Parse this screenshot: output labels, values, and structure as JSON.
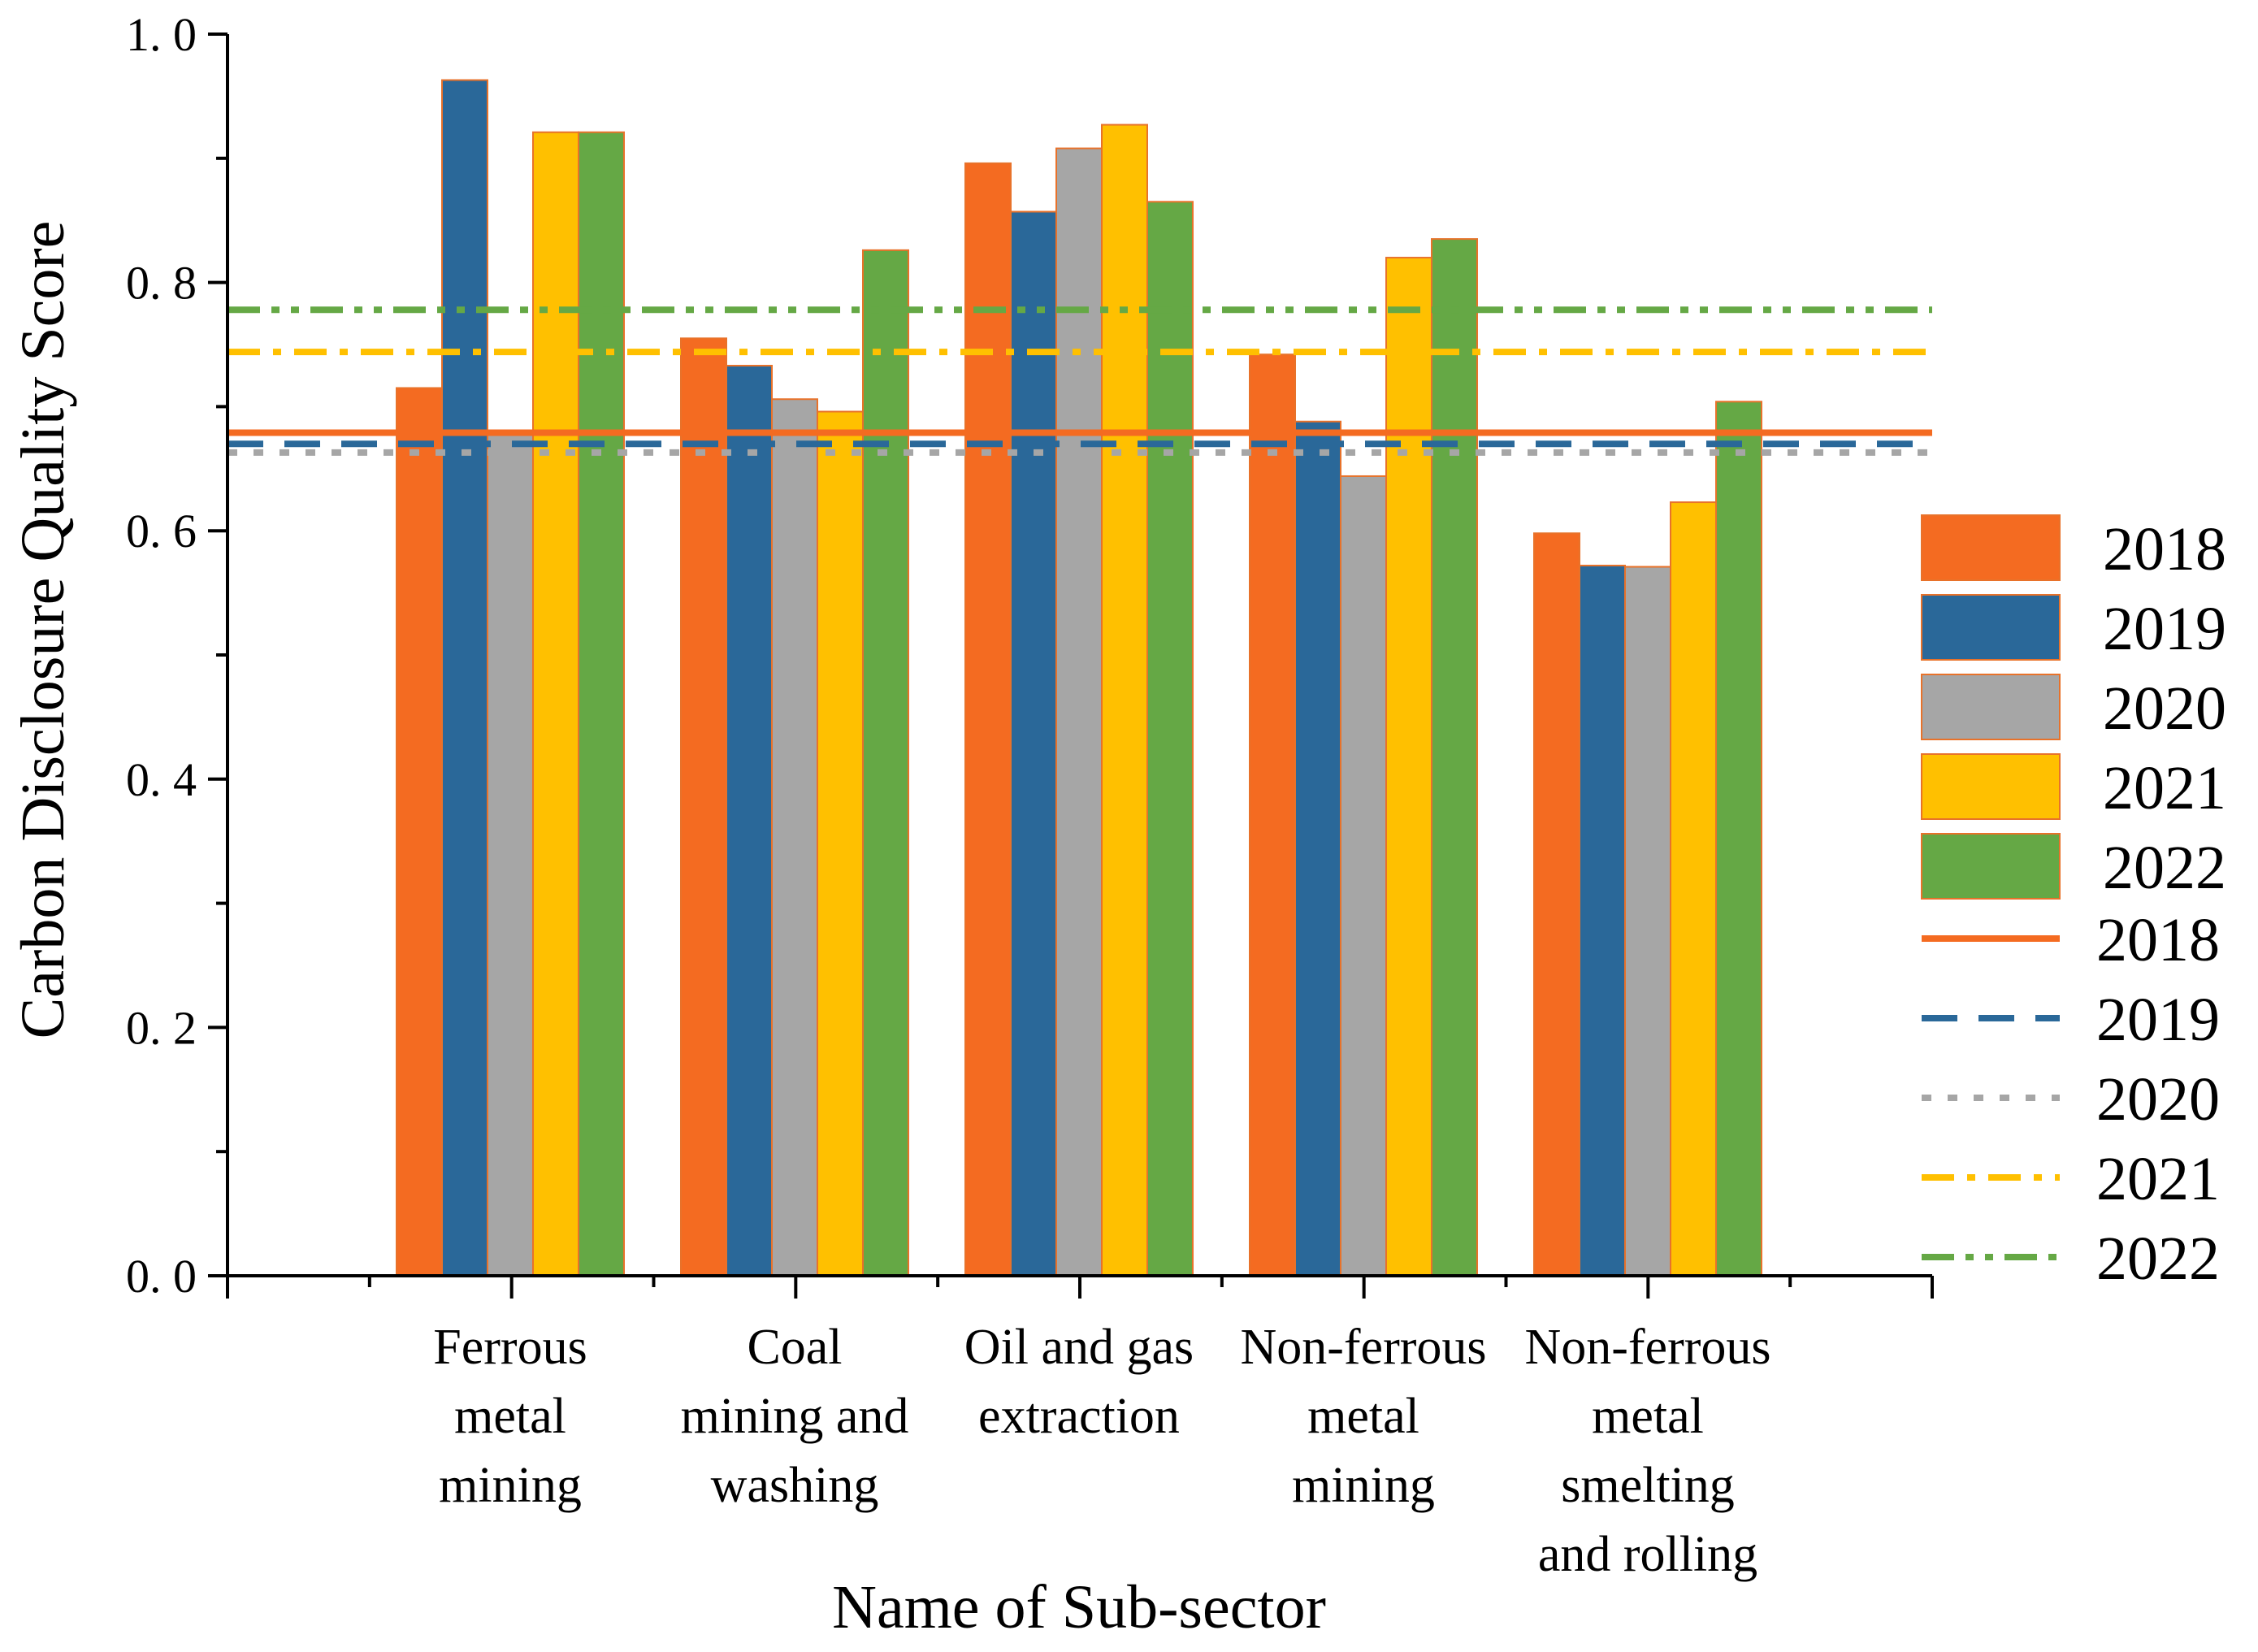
{
  "chart_data": {
    "type": "bar",
    "title": "",
    "xlabel": "Name of Sub-sector",
    "ylabel": "Carbon Disclosure Quality Score",
    "ylim": [
      0,
      1.0
    ],
    "yticks": [
      "0. 0",
      "0. 2",
      "0. 4",
      "0. 6",
      "0. 8",
      "1. 0"
    ],
    "categories": [
      [
        "Ferrous",
        "metal",
        "mining"
      ],
      [
        "Coal",
        "mining and",
        "washing"
      ],
      [
        "Oil and gas",
        "extraction"
      ],
      [
        "Non-ferrous",
        "metal",
        "mining"
      ],
      [
        "Non-ferrous",
        "metal",
        "smelting",
        "and rolling"
      ]
    ],
    "series": [
      {
        "name": "2018",
        "color": "#F46B21",
        "values": [
          0.715,
          0.755,
          0.896,
          0.742,
          0.598
        ]
      },
      {
        "name": "2019",
        "color": "#2A6899",
        "values": [
          0.963,
          0.733,
          0.857,
          0.688,
          0.572
        ]
      },
      {
        "name": "2020",
        "color": "#A6A6A6",
        "values": [
          0.678,
          0.706,
          0.908,
          0.644,
          0.571
        ]
      },
      {
        "name": "2021",
        "color": "#FFC000",
        "values": [
          0.921,
          0.696,
          0.927,
          0.82,
          0.623
        ]
      },
      {
        "name": "2022",
        "color": "#65A845",
        "values": [
          0.921,
          0.826,
          0.865,
          0.835,
          0.704
        ]
      }
    ],
    "reference_lines": [
      {
        "name": "2018",
        "value": 0.679,
        "color": "#F46B21",
        "style": "solid"
      },
      {
        "name": "2019",
        "value": 0.67,
        "color": "#2A6899",
        "style": "dash"
      },
      {
        "name": "2020",
        "value": 0.663,
        "color": "#A6A6A6",
        "style": "dot"
      },
      {
        "name": "2021",
        "value": 0.744,
        "color": "#FFC000",
        "style": "dash-dot"
      },
      {
        "name": "2022",
        "value": 0.778,
        "color": "#65A845",
        "style": "dash-dot-dot"
      }
    ],
    "legend_position": "right"
  }
}
